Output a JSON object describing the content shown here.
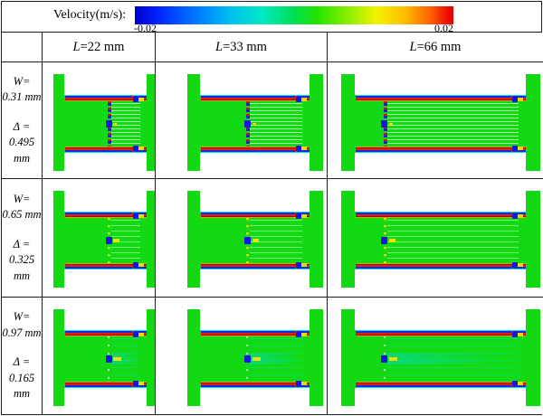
{
  "legend": {
    "label": "Velocity(m/s):",
    "min": "-0.02",
    "max": "0.02",
    "colormap": "jet (blue-cyan-green-yellow-red)"
  },
  "columns": [
    {
      "var": "L",
      "rest": "=22 mm"
    },
    {
      "var": "L",
      "rest": "=33 mm"
    },
    {
      "var": "L",
      "rest": "=66 mm"
    }
  ],
  "rows": [
    {
      "w_label": "W=",
      "w_value": "0.31 mm",
      "d_label": "Δ =",
      "d_value": "0.495 mm"
    },
    {
      "w_label": "W=",
      "w_value": "0.65 mm",
      "d_label": "Δ =",
      "d_value": "0.325 mm"
    },
    {
      "w_label": "W=",
      "w_value": "0.97 mm",
      "d_label": "Δ =",
      "d_value": "0.165 mm"
    }
  ],
  "colors": {
    "contour_green": "#12d912",
    "contour_red": "#e02000",
    "contour_blue": "#1428e8",
    "contour_cyan": "#10e0d0",
    "contour_yellow": "#f0e000"
  }
}
